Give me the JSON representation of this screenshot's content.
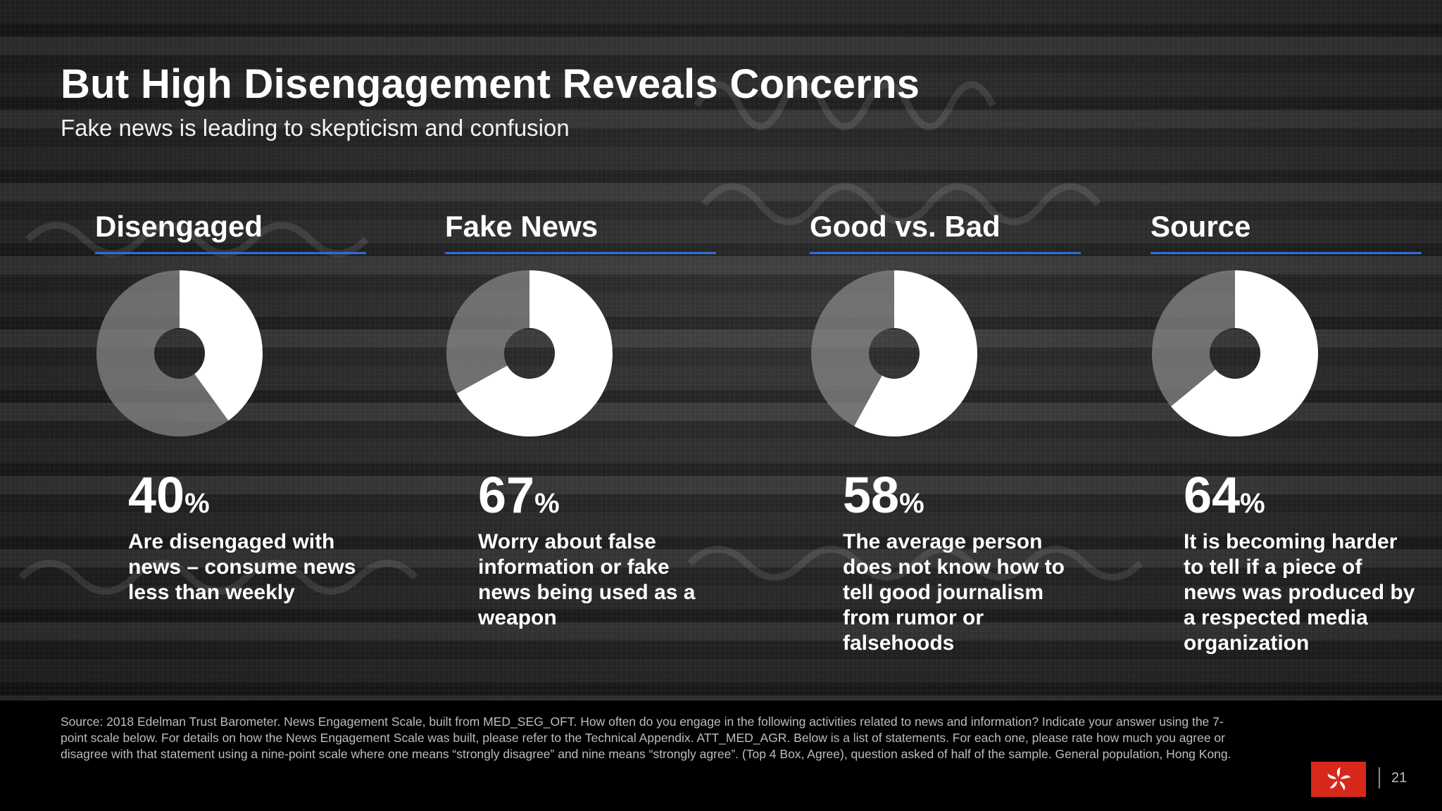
{
  "title": "But High Disengagement Reveals Concerns",
  "subtitle": "Fake news is leading to skepticism and confusion",
  "colors": {
    "accent_rule": "#2b6fd6",
    "donut_highlight": "#ffffff",
    "donut_remainder": "#8c8c8c",
    "flag": "#d7281c"
  },
  "chart_data": [
    {
      "type": "pie",
      "title": "Disengaged",
      "values": [
        40,
        60
      ],
      "labels": [
        "40%",
        ""
      ]
    },
    {
      "type": "pie",
      "title": "Fake News",
      "values": [
        67,
        33
      ],
      "labels": [
        "67%",
        ""
      ]
    },
    {
      "type": "pie",
      "title": "Good vs. Bad",
      "values": [
        58,
        42
      ],
      "labels": [
        "58%",
        ""
      ]
    },
    {
      "type": "pie",
      "title": "Source",
      "values": [
        64,
        36
      ],
      "labels": [
        "64%",
        ""
      ]
    }
  ],
  "columns": [
    {
      "heading": "Disengaged",
      "value": "40",
      "unit": "%",
      "description": "Are disengaged with news – consume news less than weekly"
    },
    {
      "heading": "Fake News",
      "value": "67",
      "unit": "%",
      "description": "Worry about false information or fake news being used as a weapon"
    },
    {
      "heading": "Good vs. Bad",
      "value": "58",
      "unit": "%",
      "description": "The average person does not know how to tell good journalism from rumor or falsehoods"
    },
    {
      "heading": "Source",
      "value": "64",
      "unit": "%",
      "description": "It is becoming harder to tell if a piece of news was produced by a respected media organization"
    }
  ],
  "footer": {
    "source": "Source: 2018 Edelman Trust Barometer. News Engagement Scale, built from MED_SEG_OFT. How often do you engage in the following activities related to news and information? Indicate your answer using the 7-point scale below. For details on how the News Engagement Scale was built, please refer to the Technical Appendix. ATT_MED_AGR. Below is a list of statements. For each one, please rate how much you agree or disagree with that statement using a nine-point scale where one means “strongly disagree” and nine means “strongly agree”. (Top 4 Box, Agree), question asked of half of the sample. General population, Hong Kong.",
    "flag_icon": "hong-kong-flag-icon",
    "page_number": "21"
  }
}
